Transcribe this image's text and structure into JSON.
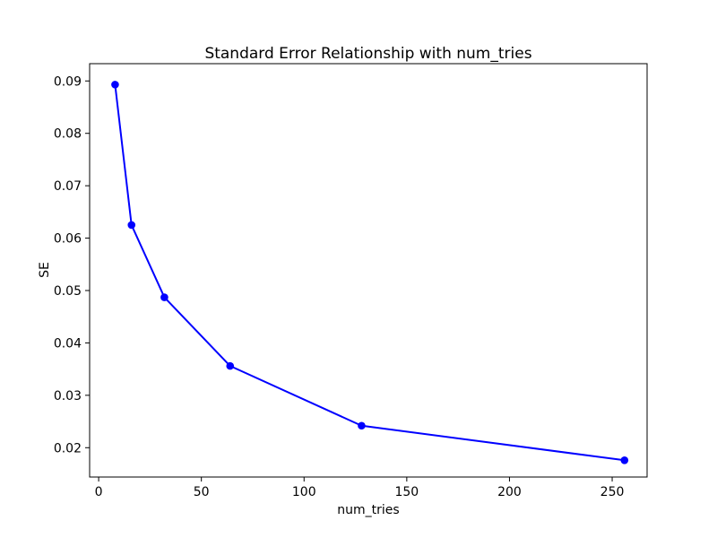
{
  "figure": {
    "background_color": "#ffffff"
  },
  "chart_data": {
    "type": "line",
    "title": "Standard Error Relationship with num_tries",
    "xlabel": "num_tries",
    "ylabel": "SE",
    "series": [
      {
        "name": "SE",
        "color": "#0000ff",
        "marker": "circle",
        "x": [
          8,
          16,
          32,
          64,
          128,
          256
        ],
        "y": [
          0.0893,
          0.0625,
          0.0487,
          0.0356,
          0.0242,
          0.0176
        ]
      }
    ],
    "xlim": [
      -4.4,
      267.0
    ],
    "ylim": [
      0.0144,
      0.0933
    ],
    "x_ticks": [
      0,
      50,
      100,
      150,
      200,
      250
    ],
    "x_tick_labels": [
      "0",
      "50",
      "100",
      "150",
      "200",
      "250"
    ],
    "y_ticks": [
      0.02,
      0.03,
      0.04,
      0.05,
      0.06,
      0.07,
      0.08,
      0.09
    ],
    "y_tick_labels": [
      "0.02",
      "0.03",
      "0.04",
      "0.05",
      "0.06",
      "0.07",
      "0.08",
      "0.09"
    ],
    "grid": false,
    "legend": null,
    "axis_color": "#000000",
    "text_color": "#000000",
    "plot_background": "#ffffff"
  }
}
